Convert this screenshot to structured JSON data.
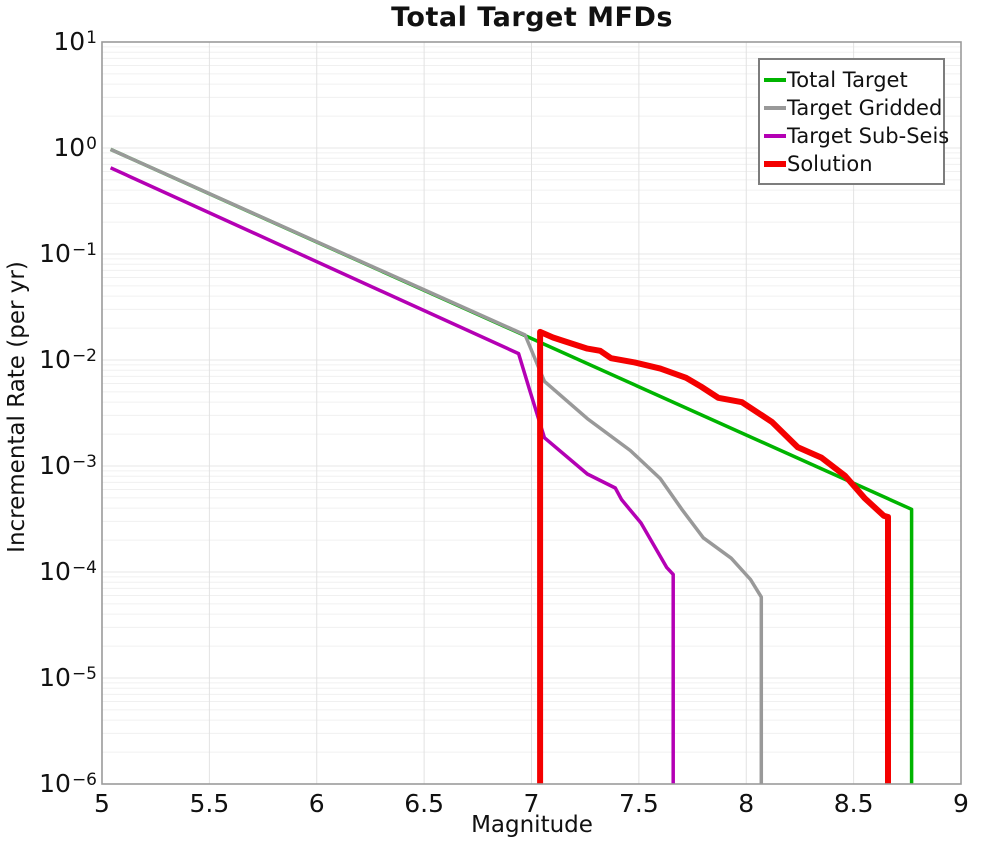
{
  "figure": {
    "title": "Total Target MFDs",
    "xlabel": "Magnitude",
    "ylabel": "Incremental Rate (per yr)"
  },
  "chart_data": {
    "type": "line",
    "title": "Total Target MFDs",
    "xlabel": "Magnitude",
    "ylabel": "Incremental Rate (per yr)",
    "x_scale": "linear",
    "y_scale": "log",
    "xlim": [
      5,
      9
    ],
    "ylim": [
      1e-06,
      10
    ],
    "x_tick_labels": [
      "5",
      "5.5",
      "6",
      "6.5",
      "7",
      "7.5",
      "8",
      "8.5",
      "9"
    ],
    "x_tick_values": [
      5,
      5.5,
      6,
      6.5,
      7,
      7.5,
      8,
      8.5,
      9
    ],
    "y_tick_exponents": [
      1,
      0,
      -1,
      -2,
      -3,
      -4,
      -5,
      -6
    ],
    "grid": true,
    "legend_position": "upper right",
    "series": [
      {
        "name": "Total Target",
        "color": "#00b400",
        "line_width": 3.5,
        "points": [
          [
            5.04,
            0.97
          ],
          [
            8.77,
            0.00039
          ],
          [
            8.77,
            1e-06
          ]
        ]
      },
      {
        "name": "Target Gridded",
        "color": "#999999",
        "line_width": 3.5,
        "points": [
          [
            5.04,
            0.97
          ],
          [
            6.97,
            0.0172
          ],
          [
            7.06,
            0.0063
          ],
          [
            7.26,
            0.0028
          ],
          [
            7.46,
            0.0014
          ],
          [
            7.6,
            0.00076
          ],
          [
            7.7,
            0.00039
          ],
          [
            7.8,
            0.00021
          ],
          [
            7.93,
            0.000135
          ],
          [
            8.02,
            8.5e-05
          ],
          [
            8.07,
            5.8e-05
          ],
          [
            8.07,
            1e-06
          ]
        ]
      },
      {
        "name": "Target Sub-Seis",
        "color": "#b400b4",
        "line_width": 3.5,
        "points": [
          [
            5.04,
            0.65
          ],
          [
            6.94,
            0.0115
          ],
          [
            6.99,
            0.0053
          ],
          [
            7.06,
            0.00185
          ],
          [
            7.26,
            0.00084
          ],
          [
            7.39,
            0.00062
          ],
          [
            7.42,
            0.00048
          ],
          [
            7.51,
            0.00029
          ],
          [
            7.63,
            0.00011
          ],
          [
            7.66,
            9.5e-05
          ],
          [
            7.66,
            1e-06
          ]
        ]
      },
      {
        "name": "Solution",
        "color": "#f40000",
        "line_width": 6,
        "points": [
          [
            7.04,
            1e-06
          ],
          [
            7.04,
            0.0184
          ],
          [
            7.1,
            0.0163
          ],
          [
            7.15,
            0.0151
          ],
          [
            7.26,
            0.0128
          ],
          [
            7.32,
            0.0122
          ],
          [
            7.37,
            0.0104
          ],
          [
            7.48,
            0.0095
          ],
          [
            7.6,
            0.0083
          ],
          [
            7.72,
            0.0068
          ],
          [
            7.79,
            0.0056
          ],
          [
            7.87,
            0.0044
          ],
          [
            7.98,
            0.004
          ],
          [
            8.12,
            0.0026
          ],
          [
            8.24,
            0.0015
          ],
          [
            8.35,
            0.0012
          ],
          [
            8.46,
            0.00081
          ],
          [
            8.55,
            0.0005
          ],
          [
            8.64,
            0.00034
          ],
          [
            8.66,
            0.00033
          ],
          [
            8.66,
            1e-06
          ]
        ]
      }
    ]
  }
}
